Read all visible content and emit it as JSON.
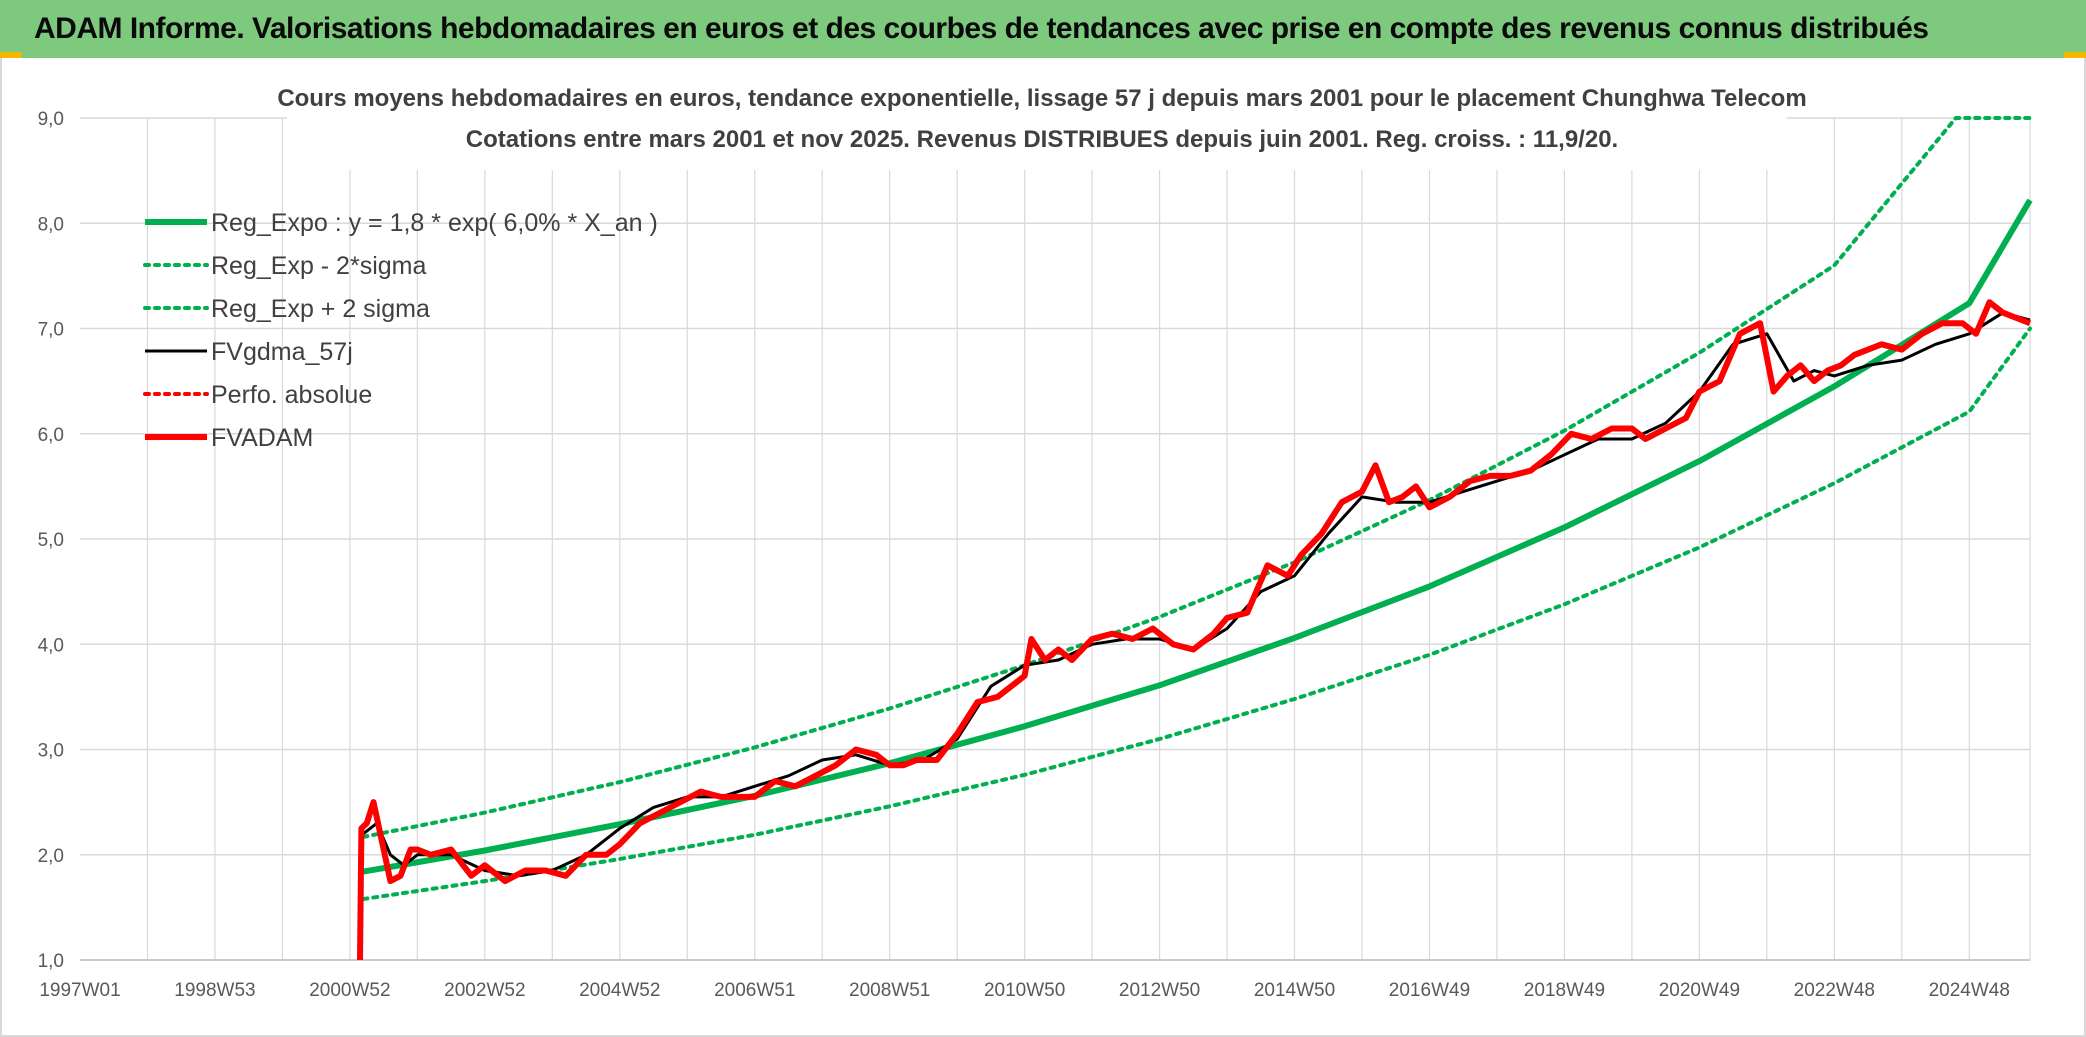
{
  "header": {
    "title": "ADAM Informe. Valorisations hebdomadaires en euros et des courbes de tendances avec prise en compte des revenus connus distribués"
  },
  "colors": {
    "header_bg": "#7dc97d",
    "reg_green": "#00b050",
    "dotted_green": "#00b050",
    "fv_black": "#000000",
    "fvadam_red": "#ff0000",
    "perfo_red": "#ff0000",
    "grid": "#d9d9d9"
  },
  "chart_data": {
    "type": "line",
    "title_line1": "Cours moyens hebdomadaires en euros, tendance exponentielle, lissage 57 j depuis mars 2001 pour le placement Chunghwa Telecom",
    "title_line2": "Cotations entre mars 2001 et nov 2025. Revenus DISTRIBUES depuis juin 2001. Reg. croiss. : 11,9/20.",
    "xlabel": "",
    "ylabel": "",
    "x_range": [
      1997.0,
      2025.9
    ],
    "ylim": [
      1.0,
      9.0
    ],
    "y_ticks": [
      "1,0",
      "2,0",
      "3,0",
      "4,0",
      "5,0",
      "6,0",
      "7,0",
      "8,0",
      "9,0"
    ],
    "x_ticks": [
      {
        "label": "1997W01",
        "x": 1997.0
      },
      {
        "label": "1998W53",
        "x": 1999.0
      },
      {
        "label": "2000W52",
        "x": 2001.0
      },
      {
        "label": "2002W52",
        "x": 2003.0
      },
      {
        "label": "2004W52",
        "x": 2005.0
      },
      {
        "label": "2006W51",
        "x": 2007.0
      },
      {
        "label": "2008W51",
        "x": 2009.0
      },
      {
        "label": "2010W50",
        "x": 2011.0
      },
      {
        "label": "2012W50",
        "x": 2013.0
      },
      {
        "label": "2014W50",
        "x": 2015.0
      },
      {
        "label": "2016W49",
        "x": 2017.0
      },
      {
        "label": "2018W49",
        "x": 2019.0
      },
      {
        "label": "2020W49",
        "x": 2021.0
      },
      {
        "label": "2022W48",
        "x": 2023.0
      },
      {
        "label": "2024W48",
        "x": 2025.0
      }
    ],
    "grid": true,
    "legend_position": "top-left",
    "legend": [
      {
        "label": "Reg_Expo : y = 1,8 * exp( 6,0% *  X_an )",
        "style": "solid-thick",
        "color": "#00b050"
      },
      {
        "label": "Reg_Exp - 2*sigma",
        "style": "dotted",
        "color": "#00b050"
      },
      {
        "label": "Reg_Exp + 2 sigma",
        "style": "dotted",
        "color": "#00b050"
      },
      {
        "label": "FVgdma_57j",
        "style": "solid",
        "color": "#000000"
      },
      {
        "label": "Perfo. absolue",
        "style": "dotted",
        "color": "#ff0000"
      },
      {
        "label": "FVADAM",
        "style": "solid-thick",
        "color": "#ff0000"
      }
    ],
    "series": [
      {
        "name": "Reg_Expo : y = 1,8 * exp( 6,0% *  X_an )",
        "x": [
          2001.2,
          2003,
          2005,
          2007,
          2009,
          2011,
          2013,
          2015,
          2017,
          2019,
          2021,
          2023,
          2025,
          2025.9
        ],
        "values": [
          1.84,
          2.04,
          2.29,
          2.56,
          2.87,
          3.22,
          3.61,
          4.06,
          4.55,
          5.11,
          5.74,
          6.45,
          7.24,
          8.22
        ]
      },
      {
        "name": "Reg_Exp - 2*sigma",
        "x": [
          2001.2,
          2003,
          2005,
          2007,
          2009,
          2011,
          2013,
          2015,
          2017,
          2019,
          2021,
          2023,
          2025,
          2025.9
        ],
        "values": [
          1.58,
          1.75,
          1.96,
          2.19,
          2.46,
          2.76,
          3.1,
          3.48,
          3.9,
          4.38,
          4.92,
          5.53,
          6.21,
          7.0
        ]
      },
      {
        "name": "Reg_Exp + 2 sigma",
        "x": [
          2001.2,
          2003,
          2005,
          2007,
          2009,
          2011,
          2013,
          2015,
          2017,
          2019,
          2021,
          2023,
          2024.8,
          2025.9
        ],
        "values": [
          2.17,
          2.4,
          2.69,
          3.02,
          3.39,
          3.8,
          4.26,
          4.78,
          5.37,
          6.03,
          6.77,
          7.6,
          9.0,
          9.0
        ]
      },
      {
        "name": "FVgdma_57j",
        "x": [
          2001.2,
          2001.4,
          2001.6,
          2001.8,
          2002.0,
          2002.5,
          2003.0,
          2003.5,
          2004.0,
          2004.5,
          2005.0,
          2005.5,
          2006.0,
          2006.5,
          2007.0,
          2007.5,
          2008.0,
          2008.5,
          2009.0,
          2009.5,
          2010.0,
          2010.5,
          2011.0,
          2011.5,
          2012.0,
          2012.5,
          2013.0,
          2013.5,
          2014.0,
          2014.5,
          2015.0,
          2015.5,
          2016.0,
          2016.5,
          2017.0,
          2017.5,
          2018.0,
          2018.5,
          2019.0,
          2019.5,
          2020.0,
          2020.5,
          2021.0,
          2021.5,
          2022.0,
          2022.4,
          2022.7,
          2023.0,
          2023.5,
          2024.0,
          2024.5,
          2025.0,
          2025.5,
          2025.9
        ],
        "values": [
          2.2,
          2.3,
          2.0,
          1.9,
          2.0,
          2.0,
          1.85,
          1.8,
          1.85,
          2.0,
          2.25,
          2.45,
          2.55,
          2.55,
          2.65,
          2.75,
          2.9,
          2.95,
          2.85,
          2.9,
          3.1,
          3.6,
          3.8,
          3.85,
          4.0,
          4.05,
          4.05,
          3.95,
          4.15,
          4.5,
          4.65,
          5.05,
          5.4,
          5.35,
          5.35,
          5.45,
          5.55,
          5.65,
          5.8,
          5.95,
          5.95,
          6.1,
          6.4,
          6.85,
          6.95,
          6.5,
          6.6,
          6.55,
          6.65,
          6.7,
          6.85,
          6.95,
          7.15,
          7.08
        ]
      },
      {
        "name": "Perfo. absolue",
        "x": [],
        "values": []
      },
      {
        "name": "FVADAM",
        "x": [
          2001.15,
          2001.17,
          2001.25,
          2001.35,
          2001.45,
          2001.6,
          2001.75,
          2001.9,
          2002.0,
          2002.2,
          2002.5,
          2002.8,
          2003.0,
          2003.3,
          2003.6,
          2003.9,
          2004.2,
          2004.5,
          2004.8,
          2005.0,
          2005.3,
          2005.6,
          2005.9,
          2006.2,
          2006.5,
          2006.8,
          2007.0,
          2007.3,
          2007.6,
          2007.9,
          2008.2,
          2008.5,
          2008.8,
          2009.0,
          2009.2,
          2009.4,
          2009.7,
          2010.0,
          2010.3,
          2010.6,
          2010.9,
          2011.0,
          2011.1,
          2011.3,
          2011.5,
          2011.7,
          2012.0,
          2012.3,
          2012.6,
          2012.9,
          2013.2,
          2013.5,
          2013.8,
          2014.0,
          2014.3,
          2014.6,
          2014.9,
          2015.1,
          2015.4,
          2015.7,
          2016.0,
          2016.2,
          2016.4,
          2016.6,
          2016.8,
          2017.0,
          2017.3,
          2017.6,
          2017.9,
          2018.2,
          2018.5,
          2018.8,
          2019.1,
          2019.4,
          2019.7,
          2020.0,
          2020.2,
          2020.5,
          2020.8,
          2021.0,
          2021.3,
          2021.6,
          2021.9,
          2022.1,
          2022.3,
          2022.5,
          2022.7,
          2022.9,
          2023.1,
          2023.3,
          2023.5,
          2023.7,
          2024.0,
          2024.3,
          2024.6,
          2024.9,
          2025.1,
          2025.3,
          2025.5,
          2025.7,
          2025.9
        ],
        "values": [
          1.0,
          2.25,
          2.3,
          2.5,
          2.2,
          1.75,
          1.8,
          2.05,
          2.05,
          2.0,
          2.05,
          1.8,
          1.9,
          1.75,
          1.85,
          1.85,
          1.8,
          2.0,
          2.0,
          2.1,
          2.3,
          2.4,
          2.5,
          2.6,
          2.55,
          2.55,
          2.55,
          2.7,
          2.65,
          2.75,
          2.85,
          3.0,
          2.95,
          2.85,
          2.85,
          2.9,
          2.9,
          3.15,
          3.45,
          3.5,
          3.65,
          3.7,
          4.05,
          3.85,
          3.95,
          3.85,
          4.05,
          4.1,
          4.05,
          4.15,
          4.0,
          3.95,
          4.1,
          4.25,
          4.3,
          4.75,
          4.65,
          4.85,
          5.05,
          5.35,
          5.45,
          5.7,
          5.35,
          5.4,
          5.5,
          5.3,
          5.4,
          5.55,
          5.6,
          5.6,
          5.65,
          5.8,
          6.0,
          5.95,
          6.05,
          6.05,
          5.95,
          6.05,
          6.15,
          6.4,
          6.5,
          6.95,
          7.05,
          6.4,
          6.55,
          6.65,
          6.5,
          6.6,
          6.65,
          6.75,
          6.8,
          6.85,
          6.8,
          6.95,
          7.05,
          7.05,
          6.95,
          7.25,
          7.15,
          7.1,
          7.05
        ]
      }
    ]
  }
}
